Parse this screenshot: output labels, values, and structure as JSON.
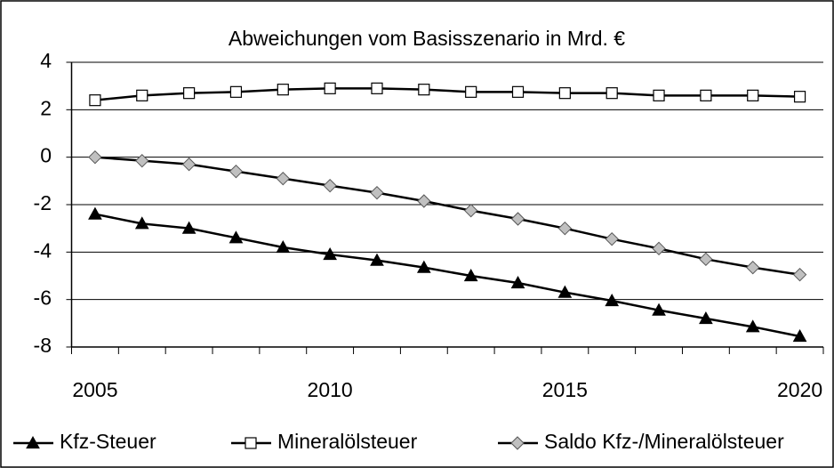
{
  "chart_data": {
    "type": "line",
    "title": "Abweichungen vom Basisszenario in Mrd. €",
    "categories": [
      "2005",
      null,
      null,
      null,
      null,
      "2010",
      null,
      null,
      null,
      null,
      "2015",
      null,
      null,
      null,
      null,
      "2020"
    ],
    "series": [
      {
        "name": "Kfz-Steuer",
        "color": "#000000",
        "marker": "triangle",
        "marker_fill": "#000000",
        "values": [
          -2.4,
          -2.8,
          -3.0,
          -3.4,
          -3.8,
          -4.1,
          -4.35,
          -4.65,
          -5.0,
          -5.3,
          -5.7,
          -6.05,
          -6.45,
          -6.8,
          -7.15,
          -7.55
        ]
      },
      {
        "name": "Mineralölsteuer",
        "color": "#000000",
        "marker": "square",
        "marker_fill": "#ffffff",
        "values": [
          2.4,
          2.6,
          2.7,
          2.75,
          2.85,
          2.9,
          2.9,
          2.85,
          2.75,
          2.75,
          2.7,
          2.7,
          2.6,
          2.6,
          2.6,
          2.55
        ]
      },
      {
        "name": "Saldo Kfz-/Mineralölsteuer",
        "color": "#000000",
        "marker": "diamond",
        "marker_fill": "#c0c0c0",
        "values": [
          0,
          -0.15,
          -0.3,
          -0.6,
          -0.9,
          -1.2,
          -1.5,
          -1.85,
          -2.25,
          -2.6,
          -3.0,
          -3.45,
          -3.85,
          -4.3,
          -4.65,
          -4.95
        ]
      }
    ],
    "ylim": [
      -8,
      4
    ],
    "yticks": [
      -8,
      -6,
      -4,
      -2,
      0,
      2,
      4
    ],
    "grid": true,
    "legend": "bottom"
  }
}
